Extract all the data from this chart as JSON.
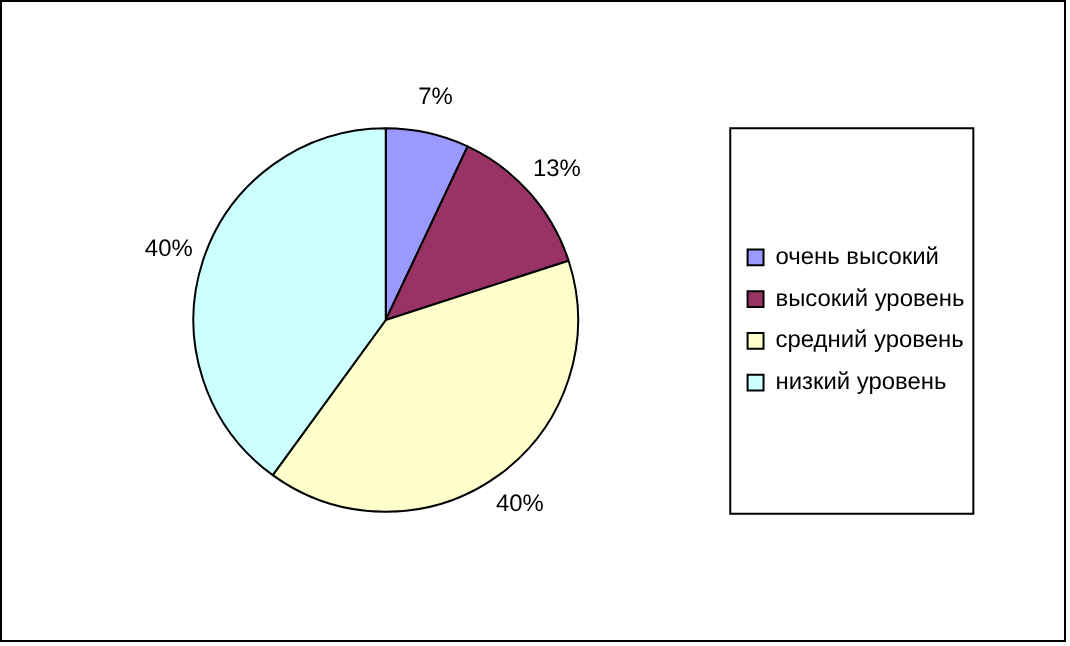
{
  "chart_data": {
    "type": "pie",
    "categories": [
      "очень высокий",
      "высокий уровень",
      "средний уровень",
      "низкий уровень"
    ],
    "values": [
      7,
      13,
      40,
      40
    ],
    "colors": [
      "#9999ff",
      "#993366",
      "#ffffcc",
      "#ccffff"
    ],
    "value_labels": [
      "7%",
      "13%",
      "40%",
      "40%"
    ],
    "legend": "right"
  }
}
